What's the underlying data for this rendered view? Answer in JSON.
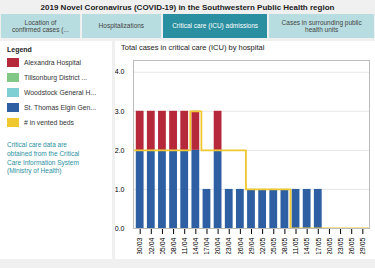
{
  "chart_data": {
    "type": "bar",
    "title": "2019 Novel Coronavirus (COVID-19) in the Southwestern Public Health region",
    "subtitle": "Total cases in critical care (ICU) by hospital",
    "tabs": [
      "Location of\nconfirmed cases (...",
      "Hospitalizations",
      "Critical care (ICU) admissions",
      "Cases in surrounding public\nhealth units"
    ],
    "legend_title": "Legend",
    "caption": "Critical care data are\nobtained from the Critical\nCare Information System\n(Ministry of Health)",
    "categories": [
      "30/03",
      "02/04",
      "05/04",
      "08/04",
      "11/04",
      "14/04",
      "17/04",
      "20/04",
      "23/04",
      "26/04",
      "29/04",
      "02/05",
      "05/05",
      "08/05",
      "11/05",
      "14/05",
      "17/05",
      "20/05",
      "23/05",
      "26/05",
      "29/05"
    ],
    "stacked": true,
    "series": [
      {
        "name": "Alexandra Hospital",
        "color": "#b5293a",
        "type": "bar",
        "values": [
          1,
          1,
          1,
          1,
          1,
          1,
          0,
          1,
          0,
          0,
          0,
          0,
          0,
          0,
          0,
          0,
          0,
          0,
          0,
          0,
          0
        ]
      },
      {
        "name": "Tillsonburg District ...",
        "color": "#82c785",
        "type": "bar",
        "values": [
          0,
          0,
          0,
          0,
          0,
          0,
          0,
          0,
          0,
          0,
          0,
          0,
          0,
          0,
          0,
          0,
          0,
          0,
          0,
          0,
          0
        ]
      },
      {
        "name": "Woodstock General H...",
        "color": "#7dcfd4",
        "type": "bar",
        "values": [
          0,
          0,
          0,
          0,
          0,
          0,
          0,
          0,
          0,
          0,
          0,
          0,
          0,
          0,
          0,
          0,
          0,
          0,
          0,
          0,
          0
        ]
      },
      {
        "name": "St. Thomas Elgin Gen...",
        "color": "#2e5fa3",
        "type": "bar",
        "values": [
          2,
          2,
          2,
          2,
          2,
          2,
          1,
          2,
          1,
          1,
          1,
          1,
          1,
          1,
          1,
          1,
          1,
          0,
          0,
          0,
          0
        ]
      },
      {
        "name": "# in vented beds",
        "color": "#f0c830",
        "type": "line",
        "line_style": "step",
        "values": [
          2,
          2,
          2,
          2,
          2,
          3,
          2,
          2,
          2,
          2,
          1,
          1,
          1,
          1,
          0,
          0,
          0,
          0,
          0,
          0,
          0
        ]
      }
    ],
    "ylim": [
      0,
      4.3
    ],
    "yticks": [
      0,
      1,
      2,
      3,
      4
    ],
    "grid": true,
    "legend": "left"
  }
}
